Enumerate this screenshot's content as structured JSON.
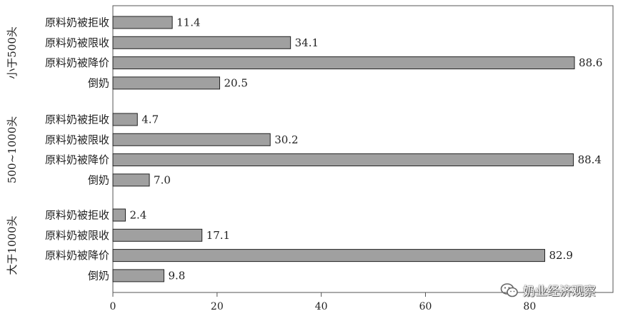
{
  "chart_data": {
    "type": "bar",
    "orientation": "horizontal",
    "xlim": [
      0,
      96
    ],
    "xticks": [
      0,
      20,
      40,
      60,
      80
    ],
    "bar_color": "#a0a0a0",
    "groups": [
      {
        "label": "小于500头",
        "items": [
          {
            "category": "原料奶被拒收",
            "value": 11.4,
            "value_label": "11.4"
          },
          {
            "category": "原料奶被限收",
            "value": 34.1,
            "value_label": "34.1"
          },
          {
            "category": "原料奶被降价",
            "value": 88.6,
            "value_label": "88.6"
          },
          {
            "category": "倒奶",
            "value": 20.5,
            "value_label": "20.5"
          }
        ]
      },
      {
        "label": "500~1000头",
        "items": [
          {
            "category": "原料奶被拒收",
            "value": 4.7,
            "value_label": "4.7"
          },
          {
            "category": "原料奶被限收",
            "value": 30.2,
            "value_label": "30.2"
          },
          {
            "category": "原料奶被降价",
            "value": 88.4,
            "value_label": "88.4"
          },
          {
            "category": "倒奶",
            "value": 7.0,
            "value_label": "7.0"
          }
        ]
      },
      {
        "label": "大于1000头",
        "items": [
          {
            "category": "原料奶被拒收",
            "value": 2.4,
            "value_label": "2.4"
          },
          {
            "category": "原料奶被限收",
            "value": 17.1,
            "value_label": "17.1"
          },
          {
            "category": "原料奶被降价",
            "value": 82.9,
            "value_label": "82.9"
          },
          {
            "category": "倒奶",
            "value": 9.8,
            "value_label": "9.8"
          }
        ]
      }
    ]
  },
  "watermark": {
    "text": "奶业经济观察",
    "icon": "wechat-icon"
  }
}
